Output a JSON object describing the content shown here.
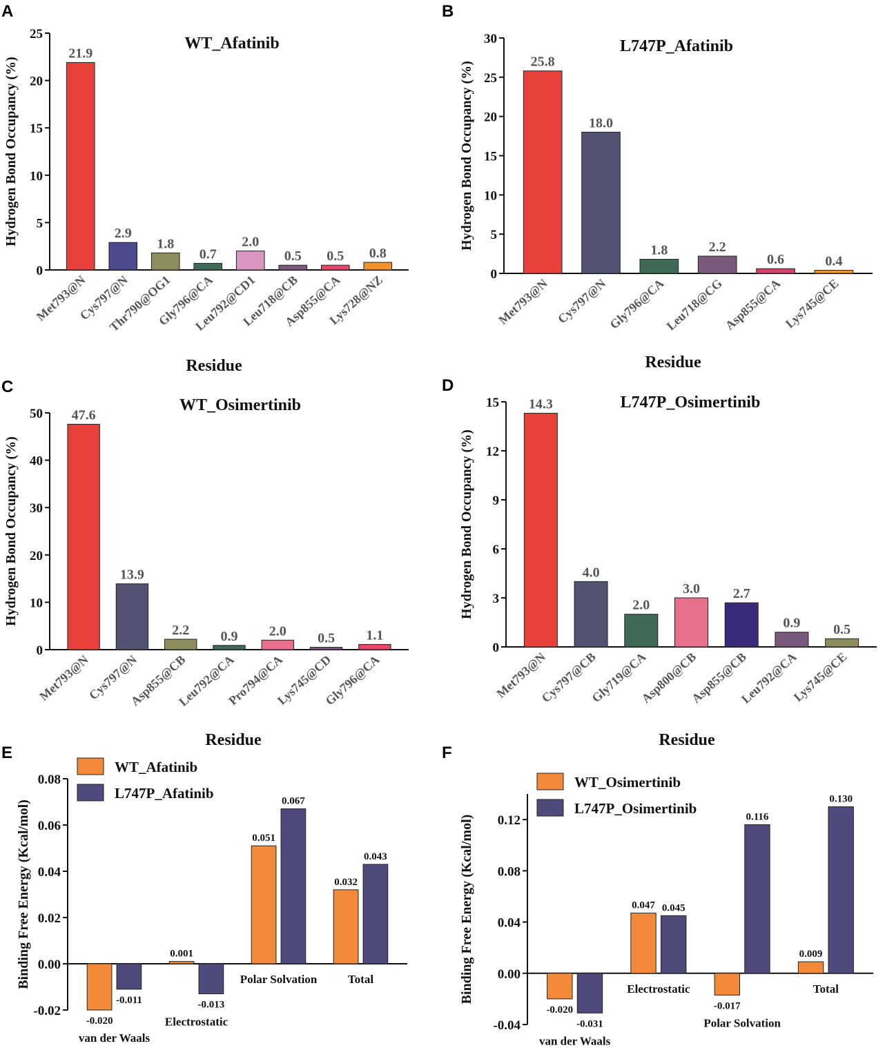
{
  "chart_data": [
    {
      "panel": "A",
      "type": "bar",
      "title": "WT_Afatinib",
      "xlabel": "Residue",
      "ylabel": "Hydrogen Bond Occupancy (%)",
      "ylim": [
        0,
        25
      ],
      "yticks": [
        0,
        5,
        10,
        15,
        20,
        25
      ],
      "tick_labels": [
        "0",
        "5",
        "10",
        "15",
        "20",
        "25"
      ],
      "categories": [
        "Met793@N",
        "Cys797@N",
        "Thr790@OG1",
        "Gly796@CA",
        "Leu792@CD1",
        "Leu718@CB",
        "Asp855@CA",
        "Lys728@NZ"
      ],
      "values": [
        21.9,
        2.9,
        1.8,
        0.7,
        2.0,
        0.5,
        0.5,
        0.8
      ],
      "value_labels": [
        "21.9",
        "2.9",
        "1.8",
        "0.7",
        "2.0",
        "0.5",
        "0.5",
        "0.8"
      ],
      "colors": [
        "#e8403a",
        "#4a4a8c",
        "#8c8c5c",
        "#3f6a55",
        "#d896c0",
        "#7a5a7c",
        "#e8466a",
        "#f0922e"
      ]
    },
    {
      "panel": "B",
      "type": "bar",
      "title": "L747P_Afatinib",
      "xlabel": "Residue",
      "ylabel": "Hydrogen Bond Occupancy (%)",
      "ylim": [
        0,
        30
      ],
      "yticks": [
        0,
        5,
        10,
        15,
        20,
        25,
        30
      ],
      "tick_labels": [
        "0",
        "5",
        "10",
        "15",
        "20",
        "25",
        "30"
      ],
      "categories": [
        "Met793@N",
        "Cys797@N",
        "Gly796@CA",
        "Leu718@CG",
        "Asp855@CA",
        "Lys745@CE"
      ],
      "values": [
        25.8,
        18.0,
        1.8,
        2.2,
        0.6,
        0.4
      ],
      "value_labels": [
        "25.8",
        "18.0",
        "1.8",
        "2.2",
        "0.6",
        "0.4"
      ],
      "colors": [
        "#e8403a",
        "#525272",
        "#3f6a55",
        "#7a5a7c",
        "#d24566",
        "#f0922e"
      ]
    },
    {
      "panel": "C",
      "type": "bar",
      "title": "WT_Osimertinib",
      "xlabel": "Residue",
      "ylabel": "Hydrogen Bond Occupancy (%)",
      "ylim": [
        0,
        50
      ],
      "yticks": [
        0,
        10,
        20,
        30,
        40,
        50
      ],
      "tick_labels": [
        "0",
        "10",
        "20",
        "30",
        "40",
        "50"
      ],
      "categories": [
        "Met793@N",
        "Cys797@N",
        "Asp855@CB",
        "Leu792@CA",
        "Pro794@CA",
        "Lys745@CD",
        "Gly796@CA"
      ],
      "values": [
        47.6,
        13.9,
        2.2,
        0.9,
        2.0,
        0.5,
        1.1
      ],
      "value_labels": [
        "47.6",
        "13.9",
        "2.2",
        "0.9",
        "2.0",
        "0.5",
        "1.1"
      ],
      "colors": [
        "#e8403a",
        "#525272",
        "#8c8c5c",
        "#3f6a55",
        "#e8708a",
        "#7a5a7c",
        "#e8466a"
      ]
    },
    {
      "panel": "D",
      "type": "bar",
      "title": "L747P_Osimertinib",
      "xlabel": "Residue",
      "ylabel": "Hydrogen Bond Occupancy (%)",
      "ylim": [
        0,
        15
      ],
      "yticks": [
        0,
        3,
        6,
        9,
        12,
        15
      ],
      "tick_labels": [
        "0",
        "3",
        "6",
        "9",
        "12",
        "15"
      ],
      "categories": [
        "Met793@N",
        "Cys797@CB",
        "Gly719@CA",
        "Asp800@CB",
        "Asp855@CB",
        "Leu792@CA",
        "Lys745@CE"
      ],
      "values": [
        14.3,
        4.0,
        2.0,
        3.0,
        2.7,
        0.9,
        0.5
      ],
      "value_labels": [
        "14.3",
        "4.0",
        "2.0",
        "3.0",
        "2.7",
        "0.9",
        "0.5"
      ],
      "colors": [
        "#e8403a",
        "#525272",
        "#3f6a55",
        "#e8708a",
        "#3a2a7c",
        "#7a5a7c",
        "#8c8c5c"
      ]
    },
    {
      "panel": "E",
      "type": "bar",
      "title": "",
      "xlabel": "",
      "ylabel": "Binding Free Energy (Kcal/mol)",
      "ylim": [
        -0.02,
        0.08
      ],
      "yticks": [
        -0.02,
        0.0,
        0.02,
        0.04,
        0.06,
        0.08
      ],
      "tick_labels": [
        "-0.02",
        "0.00",
        "0.02",
        "0.04",
        "0.06",
        "0.08"
      ],
      "categories": [
        "van der Waals",
        "Electrostatic",
        "Polar Solvation",
        "Total"
      ],
      "series": [
        {
          "name": "WT_Afatinib",
          "color": "#f28a3a",
          "values": [
            -0.02,
            0.001,
            0.051,
            0.032
          ],
          "value_labels": [
            "-0.020",
            "0.001",
            "0.051",
            "0.032"
          ]
        },
        {
          "name": "L747P_Afatinib",
          "color": "#4e4a7c",
          "values": [
            -0.011,
            -0.013,
            0.067,
            0.043
          ],
          "value_labels": [
            "-0.011",
            "-0.013",
            "0.067",
            "0.043"
          ]
        }
      ]
    },
    {
      "panel": "F",
      "type": "bar",
      "title": "",
      "xlabel": "",
      "ylabel": "Binding Free Energy (Kcal/mol)",
      "ylim": [
        -0.04,
        0.14
      ],
      "yticks": [
        -0.04,
        0.0,
        0.04,
        0.08,
        0.12
      ],
      "tick_labels": [
        "-0.04",
        "0.00",
        "0.04",
        "0.08",
        "0.12"
      ],
      "categories": [
        "van der Waals",
        "Electrostatic",
        "Polar Solvation",
        "Total"
      ],
      "series": [
        {
          "name": "WT_Osimertinib",
          "color": "#f28a3a",
          "values": [
            -0.02,
            0.047,
            -0.017,
            0.009
          ],
          "value_labels": [
            "-0.020",
            "0.047",
            "-0.017",
            "0.009"
          ]
        },
        {
          "name": "L747P_Osimertinib",
          "color": "#4e4a7c",
          "values": [
            -0.031,
            0.045,
            0.116,
            0.13
          ],
          "value_labels": [
            "-0.031",
            "0.045",
            "0.116",
            "0.130"
          ]
        }
      ]
    }
  ]
}
